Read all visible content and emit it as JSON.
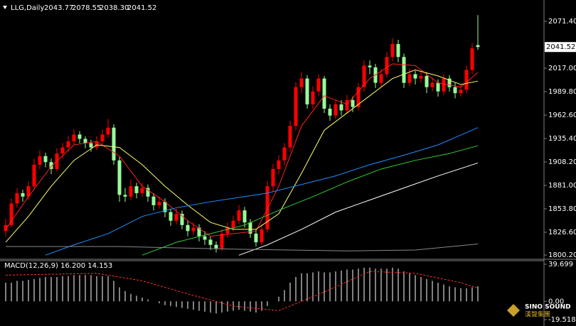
{
  "header": {
    "symbol": "LLG,Daily",
    "ohlc": [
      "2043.77",
      "2078.55",
      "2038.30",
      "2041.52"
    ]
  },
  "logo": {
    "en": "SINO SOUND",
    "cn": "漢聲集團"
  },
  "chart_data": {
    "type": "candlestick",
    "up_color": "#ff0000",
    "down_color": "#98fb98",
    "ylim": [
      1795.3,
      2096.1
    ],
    "yticks": [
      {
        "value": 2071.4,
        "label": "2071.40"
      },
      {
        "value": 2017,
        "label": "2017.00"
      },
      {
        "value": 1989.8,
        "label": "1989.80"
      },
      {
        "value": 1962.6,
        "label": "1962.60"
      },
      {
        "value": 1935.4,
        "label": "1935.40"
      },
      {
        "value": 1908.2,
        "label": "1908.20"
      },
      {
        "value": 1881,
        "label": "1881.00"
      },
      {
        "value": 1853.8,
        "label": "1853.80"
      },
      {
        "value": 1826.6,
        "label": "1826.60"
      },
      {
        "value": 1800.2,
        "label": "1800.20"
      }
    ],
    "candles": [
      [
        1828,
        1842,
        1822,
        1835
      ],
      [
        1835,
        1866,
        1832,
        1860
      ],
      [
        1860,
        1878,
        1855,
        1872
      ],
      [
        1872,
        1876,
        1862,
        1868
      ],
      [
        1868,
        1886,
        1864,
        1880
      ],
      [
        1880,
        1912,
        1877,
        1905
      ],
      [
        1905,
        1922,
        1900,
        1915
      ],
      [
        1915,
        1919,
        1902,
        1908
      ],
      [
        1908,
        1912,
        1894,
        1900
      ],
      [
        1900,
        1924,
        1897,
        1918
      ],
      [
        1918,
        1930,
        1912,
        1925
      ],
      [
        1925,
        1938,
        1920,
        1932
      ],
      [
        1932,
        1946,
        1928,
        1940
      ],
      [
        1940,
        1944,
        1930,
        1935
      ],
      [
        1935,
        1938,
        1924,
        1930
      ],
      [
        1930,
        1934,
        1920,
        1925
      ],
      [
        1925,
        1938,
        1922,
        1932
      ],
      [
        1932,
        1946,
        1928,
        1940
      ],
      [
        1940,
        1958,
        1936,
        1948
      ],
      [
        1948,
        1952,
        1905,
        1910
      ],
      [
        1910,
        1914,
        1862,
        1870
      ],
      [
        1870,
        1878,
        1862,
        1868
      ],
      [
        1868,
        1888,
        1864,
        1880
      ],
      [
        1880,
        1884,
        1866,
        1872
      ],
      [
        1872,
        1884,
        1868,
        1878
      ],
      [
        1878,
        1882,
        1862,
        1868
      ],
      [
        1868,
        1872,
        1852,
        1858
      ],
      [
        1858,
        1868,
        1854,
        1862
      ],
      [
        1862,
        1866,
        1844,
        1850
      ],
      [
        1850,
        1854,
        1834,
        1840
      ],
      [
        1840,
        1854,
        1836,
        1848
      ],
      [
        1848,
        1852,
        1830,
        1835
      ],
      [
        1835,
        1840,
        1822,
        1828
      ],
      [
        1828,
        1838,
        1824,
        1832
      ],
      [
        1832,
        1836,
        1816,
        1822
      ],
      [
        1822,
        1828,
        1812,
        1818
      ],
      [
        1818,
        1822,
        1806,
        1812
      ],
      [
        1812,
        1816,
        1803,
        1808
      ],
      [
        1808,
        1830,
        1805,
        1825
      ],
      [
        1825,
        1838,
        1820,
        1832
      ],
      [
        1832,
        1846,
        1828,
        1840
      ],
      [
        1840,
        1858,
        1836,
        1852
      ],
      [
        1852,
        1856,
        1832,
        1838
      ],
      [
        1838,
        1842,
        1820,
        1825
      ],
      [
        1825,
        1830,
        1810,
        1815
      ],
      [
        1815,
        1836,
        1812,
        1830
      ],
      [
        1830,
        1886,
        1826,
        1880
      ],
      [
        1880,
        1906,
        1874,
        1900
      ],
      [
        1900,
        1916,
        1894,
        1910
      ],
      [
        1910,
        1930,
        1904,
        1925
      ],
      [
        1925,
        1956,
        1920,
        1950
      ],
      [
        1950,
        2001,
        1945,
        1995
      ],
      [
        1995,
        2012,
        1988,
        2005
      ],
      [
        2005,
        2009,
        1970,
        1975
      ],
      [
        1975,
        1996,
        1970,
        1990
      ],
      [
        1990,
        2010,
        1985,
        2005
      ],
      [
        2005,
        2008,
        1965,
        1970
      ],
      [
        1970,
        1975,
        1956,
        1962
      ],
      [
        1962,
        1980,
        1958,
        1975
      ],
      [
        1975,
        1980,
        1962,
        1968
      ],
      [
        1968,
        1986,
        1964,
        1980
      ],
      [
        1980,
        1984,
        1966,
        1972
      ],
      [
        1972,
        2000,
        1968,
        1995
      ],
      [
        1995,
        2026,
        1990,
        2020
      ],
      [
        2020,
        2026,
        2010,
        2018
      ],
      [
        2018,
        2022,
        1994,
        2000
      ],
      [
        2000,
        2016,
        1996,
        2010
      ],
      [
        2010,
        2036,
        2006,
        2030
      ],
      [
        2030,
        2052,
        2025,
        2045
      ],
      [
        2045,
        2050,
        2024,
        2030
      ],
      [
        2030,
        2034,
        1994,
        2000
      ],
      [
        2000,
        2016,
        1996,
        2010
      ],
      [
        2010,
        2014,
        1998,
        2005
      ],
      [
        2005,
        2014,
        2000,
        2008
      ],
      [
        2008,
        2012,
        1988,
        1995
      ],
      [
        1995,
        2006,
        1990,
        2000
      ],
      [
        2000,
        2004,
        1984,
        1990
      ],
      [
        1990,
        2010,
        1986,
        2005
      ],
      [
        2005,
        2009,
        1990,
        1995
      ],
      [
        1995,
        2000,
        1982,
        1988
      ],
      [
        1988,
        1998,
        1984,
        1992
      ],
      [
        1992,
        2020,
        1988,
        2015
      ],
      [
        2015,
        2046,
        2010,
        2040
      ],
      [
        2043.77,
        2078.55,
        2038.3,
        2041.52
      ]
    ],
    "series": [
      {
        "color": "#ff2020",
        "x": [
          0,
          4,
          8,
          12,
          16,
          20,
          24,
          28,
          32,
          36,
          40,
          44,
          48,
          52,
          56,
          60,
          64,
          68,
          72,
          76,
          80,
          83
        ],
        "values": [
          1830,
          1868,
          1903,
          1928,
          1932,
          1915,
          1880,
          1862,
          1840,
          1822,
          1825,
          1828,
          1880,
          1950,
          1985,
          1975,
          2005,
          2022,
          2020,
          2000,
          1995,
          2012
        ]
      },
      {
        "color": "#ffff66",
        "x": [
          0,
          4,
          8,
          12,
          16,
          20,
          24,
          28,
          32,
          36,
          40,
          44,
          48,
          52,
          56,
          60,
          64,
          68,
          72,
          76,
          80,
          83
        ],
        "values": [
          1815,
          1845,
          1880,
          1910,
          1928,
          1925,
          1905,
          1880,
          1858,
          1838,
          1830,
          1830,
          1848,
          1895,
          1945,
          1965,
          1985,
          2005,
          2015,
          2008,
          1998,
          2002
        ]
      },
      {
        "color": "#1e90ff",
        "x": [
          7,
          12,
          18,
          24,
          30,
          36,
          42,
          46,
          52,
          58,
          64,
          70,
          76,
          83
        ],
        "values": [
          1800,
          1812,
          1825,
          1845,
          1855,
          1862,
          1868,
          1872,
          1882,
          1892,
          1905,
          1916,
          1928,
          1948
        ]
      },
      {
        "color": "#32cd32",
        "x": [
          24,
          30,
          36,
          42,
          48,
          54,
          60,
          66,
          72,
          78,
          83
        ],
        "values": [
          1800,
          1815,
          1825,
          1835,
          1852,
          1868,
          1885,
          1900,
          1910,
          1918,
          1927
        ]
      },
      {
        "color": "#ffffff",
        "x": [
          41,
          46,
          52,
          58,
          64,
          70,
          76,
          83
        ],
        "values": [
          1800,
          1812,
          1830,
          1850,
          1864,
          1878,
          1892,
          1907
        ]
      },
      {
        "color": "#888888",
        "x": [
          0,
          20,
          40,
          60,
          72,
          83
        ],
        "values": [
          1810,
          1810,
          1807,
          1805,
          1806,
          1813
        ]
      }
    ],
    "macd": {
      "label": "MACD(12,26,9) 16.200 14.153",
      "ylim": [
        -23.3,
        43.5
      ],
      "yticks": [
        {
          "value": 39.699,
          "label": "39.699"
        },
        {
          "value": 0,
          "label": "0.00"
        },
        {
          "value": -19.518,
          "label": "-19.518"
        }
      ],
      "histogram_color": "#ffffff",
      "signal_color": "#ff3030",
      "histogram": [
        20,
        20,
        22,
        22,
        23,
        24,
        25,
        26,
        26,
        26,
        27,
        27,
        28,
        28,
        28,
        28,
        27,
        27,
        27,
        22,
        15,
        11,
        8,
        6,
        4,
        2,
        0,
        -2,
        -4,
        -5,
        -6,
        -7,
        -8,
        -9,
        -10,
        -11,
        -12,
        -13,
        -12,
        -11,
        -10,
        -9,
        -10,
        -11,
        -12,
        -10,
        -5,
        0,
        5,
        12,
        20,
        26,
        30,
        30,
        31,
        32,
        31,
        31,
        32,
        33,
        34,
        34,
        35,
        36,
        36,
        35,
        35,
        35,
        36,
        35,
        32,
        30,
        28,
        26,
        24,
        22,
        20,
        18,
        16,
        15,
        14,
        14,
        15,
        16.2
      ],
      "signal": {
        "x": [
          0,
          8,
          16,
          24,
          32,
          40,
          48,
          56,
          64,
          72,
          80,
          83
        ],
        "values": [
          28,
          29,
          30,
          22,
          8,
          -5,
          -10,
          10,
          32,
          30,
          20,
          14.153
        ]
      }
    }
  }
}
